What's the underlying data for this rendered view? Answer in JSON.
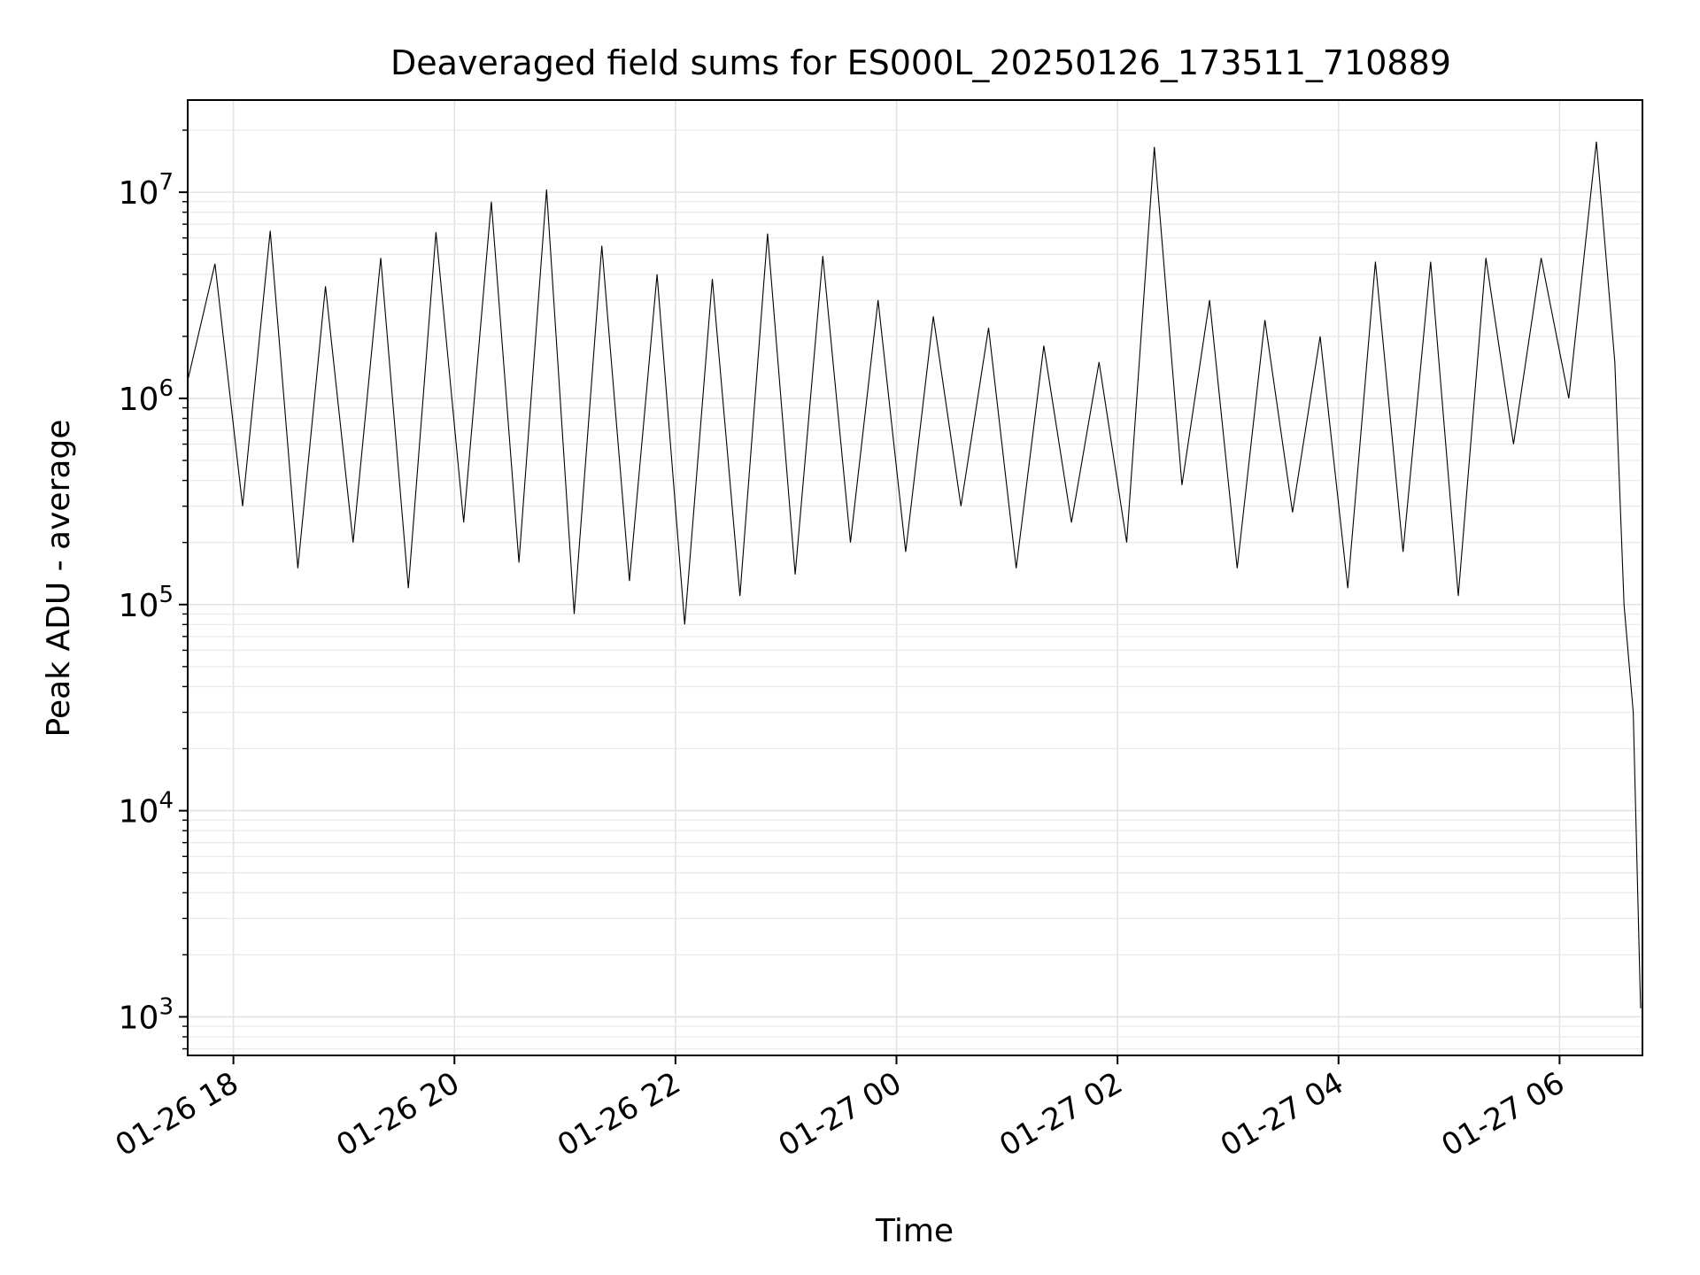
{
  "chart_data": {
    "type": "line",
    "title": "Deaveraged field sums for ES000L_20250126_173511_710889",
    "xlabel": "Time",
    "ylabel": "Peak ADU - average",
    "x_scale": "time",
    "y_scale": "log",
    "xlim": [
      "2025-01-26T17:35:11",
      "2025-01-27T06:45:00"
    ],
    "ylim": [
      650,
      28000000
    ],
    "x_ticks": [
      {
        "t": "2025-01-26T18:00",
        "label": "01-26 18"
      },
      {
        "t": "2025-01-26T20:00",
        "label": "01-26 20"
      },
      {
        "t": "2025-01-26T22:00",
        "label": "01-26 22"
      },
      {
        "t": "2025-01-27T00:00",
        "label": "01-27 00"
      },
      {
        "t": "2025-01-27T02:00",
        "label": "01-27 02"
      },
      {
        "t": "2025-01-27T04:00",
        "label": "01-27 04"
      },
      {
        "t": "2025-01-27T06:00",
        "label": "01-27 06"
      }
    ],
    "y_ticks": [
      {
        "value": 1000,
        "base": "10",
        "exp": "3"
      },
      {
        "value": 10000,
        "base": "10",
        "exp": "4"
      },
      {
        "value": 100000,
        "base": "10",
        "exp": "5"
      },
      {
        "value": 1000000,
        "base": "10",
        "exp": "6"
      },
      {
        "value": 10000000,
        "base": "10",
        "exp": "7"
      }
    ],
    "grid": true,
    "line_color": "#000000",
    "series": [
      {
        "x": [
          "2025-01-26T17:35",
          "2025-01-26T17:50",
          "2025-01-26T18:05",
          "2025-01-26T18:20",
          "2025-01-26T18:35",
          "2025-01-26T18:50",
          "2025-01-26T19:05",
          "2025-01-26T19:20",
          "2025-01-26T19:35",
          "2025-01-26T19:50",
          "2025-01-26T20:05",
          "2025-01-26T20:20",
          "2025-01-26T20:35",
          "2025-01-26T20:50",
          "2025-01-26T21:05",
          "2025-01-26T21:20",
          "2025-01-26T21:35",
          "2025-01-26T21:50",
          "2025-01-26T22:05",
          "2025-01-26T22:20",
          "2025-01-26T22:35",
          "2025-01-26T22:50",
          "2025-01-26T23:05",
          "2025-01-26T23:20",
          "2025-01-26T23:35",
          "2025-01-26T23:50",
          "2025-01-27T00:05",
          "2025-01-27T00:20",
          "2025-01-27T00:35",
          "2025-01-27T00:50",
          "2025-01-27T01:05",
          "2025-01-27T01:20",
          "2025-01-27T01:35",
          "2025-01-27T01:50",
          "2025-01-27T02:05",
          "2025-01-27T02:20",
          "2025-01-27T02:35",
          "2025-01-27T02:50",
          "2025-01-27T03:05",
          "2025-01-27T03:20",
          "2025-01-27T03:35",
          "2025-01-27T03:50",
          "2025-01-27T04:05",
          "2025-01-27T04:20",
          "2025-01-27T04:35",
          "2025-01-27T04:50",
          "2025-01-27T05:05",
          "2025-01-27T05:20",
          "2025-01-27T05:35",
          "2025-01-27T05:50",
          "2025-01-27T06:05",
          "2025-01-27T06:20",
          "2025-01-27T06:30",
          "2025-01-27T06:35",
          "2025-01-27T06:40",
          "2025-01-27T06:44"
        ],
        "y": [
          1200000,
          4500000,
          300000,
          6500000,
          150000,
          3500000,
          200000,
          4800000,
          120000,
          6400000,
          250000,
          9000000,
          160000,
          10300000,
          90000,
          5500000,
          130000,
          4000000,
          80000,
          3800000,
          110000,
          6300000,
          140000,
          4900000,
          200000,
          3000000,
          180000,
          2500000,
          300000,
          2200000,
          150000,
          1800000,
          250000,
          1500000,
          200000,
          16600000,
          380000,
          3000000,
          150000,
          2400000,
          280000,
          2000000,
          120000,
          4600000,
          180000,
          4600000,
          110000,
          4800000,
          600000,
          4800000,
          1000000,
          17600000,
          1500000,
          100000,
          30000,
          1100
        ]
      }
    ]
  }
}
